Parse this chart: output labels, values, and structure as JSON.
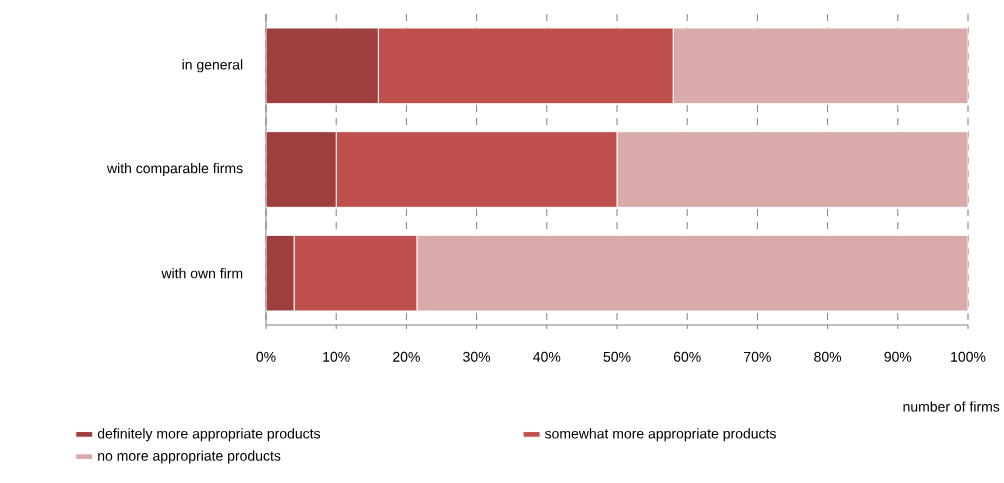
{
  "chart_data": {
    "type": "bar",
    "orientation": "horizontal",
    "stacked": true,
    "categories": [
      "in general",
      "with comparable firms",
      "with own firm"
    ],
    "series": [
      {
        "name": "definitely more appropriate products",
        "color": "#9c3f3e",
        "values": [
          16,
          10,
          4
        ]
      },
      {
        "name": "somewhat more appropriate products",
        "color": "#c0504d",
        "values": [
          42,
          40,
          17.5
        ]
      },
      {
        "name": "no more appropriate products",
        "color": "#d9aaaa",
        "values": [
          42,
          50,
          78.5
        ]
      }
    ],
    "xlabel": "number of firms",
    "xlim": [
      0,
      100
    ],
    "xticks": [
      {
        "value": 0,
        "label": "0%"
      },
      {
        "value": 10,
        "label": "10%"
      },
      {
        "value": 20,
        "label": "20%"
      },
      {
        "value": 30,
        "label": "30%"
      },
      {
        "value": 40,
        "label": "40%"
      },
      {
        "value": 50,
        "label": "50%"
      },
      {
        "value": 60,
        "label": "60%"
      },
      {
        "value": 70,
        "label": "70%"
      },
      {
        "value": 80,
        "label": "80%"
      },
      {
        "value": 90,
        "label": "90%"
      },
      {
        "value": 100,
        "label": "100%"
      }
    ],
    "grid": "x",
    "legend": "bottom"
  }
}
